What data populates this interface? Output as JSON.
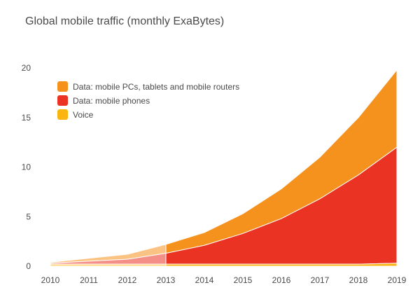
{
  "chart_data": {
    "type": "area",
    "title": "Global mobile traffic (monthly ExaBytes)",
    "x": [
      2010,
      2011,
      2012,
      2013,
      2014,
      2015,
      2016,
      2017,
      2018,
      2019
    ],
    "x_tick_labels": [
      "2010",
      "2011",
      "2012",
      "2013",
      "2014",
      "2015",
      "2016",
      "2017",
      "2018",
      "2019"
    ],
    "ylim": [
      0,
      20
    ],
    "y_ticks": [
      0,
      5,
      10,
      15,
      20
    ],
    "y_tick_labels": [
      "0",
      "5",
      "10",
      "15",
      "20"
    ],
    "stacked": true,
    "historical_shaded_through": 2013,
    "legend_position": "top-left",
    "series": [
      {
        "name": "Voice",
        "color": "#fbb512",
        "values": [
          0.2,
          0.2,
          0.2,
          0.2,
          0.2,
          0.2,
          0.2,
          0.2,
          0.2,
          0.3
        ]
      },
      {
        "name": "Data: mobile phones",
        "color": "#ea3323",
        "values": [
          0.1,
          0.3,
          0.5,
          1.1,
          1.9,
          3.1,
          4.6,
          6.6,
          9.0,
          11.7
        ]
      },
      {
        "name": "Data: mobile PCs, tablets and mobile routers",
        "color": "#f5921e",
        "values": [
          0.1,
          0.3,
          0.5,
          0.9,
          1.3,
          2.0,
          3.0,
          4.2,
          5.8,
          7.8
        ]
      }
    ],
    "legend_order": [
      "Data: mobile PCs, tablets and mobile routers",
      "Data: mobile phones",
      "Voice"
    ]
  }
}
